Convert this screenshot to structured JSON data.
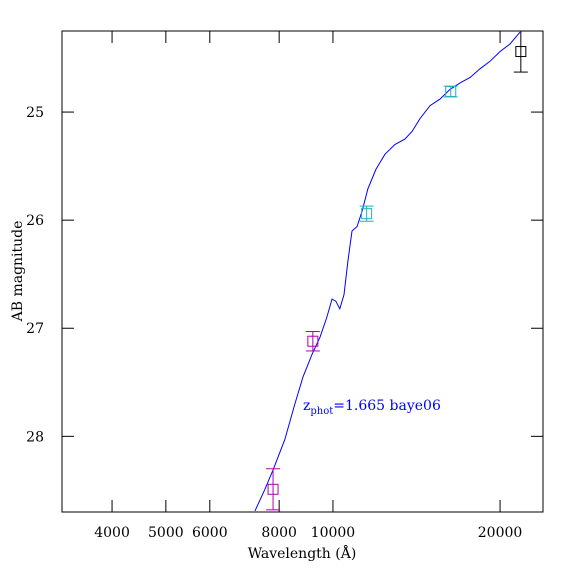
{
  "chart_data": {
    "type": "scatter",
    "xlabel": "Wavelength (Å)",
    "ylabel": "AB magnitude",
    "annotation": {
      "main": "z",
      "sub": "phot",
      "rest": "=1.665 baye06",
      "color": "#0000ff"
    },
    "xscale": "log",
    "xlim": [
      3250,
      23900
    ],
    "xticks": [
      4000,
      5000,
      6000,
      8000,
      10000,
      20000
    ],
    "ylim": [
      28.7,
      24.25
    ],
    "yticks": [
      25,
      26,
      27,
      28
    ],
    "series": [
      {
        "style": "line",
        "color": "#0000ff",
        "x": [
          7237,
          7540,
          7800,
          8190,
          8540,
          8830,
          9170,
          9480,
          9750,
          9960,
          10120,
          10290,
          10470,
          10640,
          10820,
          11050,
          11280,
          11560,
          11950,
          12410,
          12930,
          13480,
          13880,
          14350,
          14960,
          15590,
          16250,
          16940,
          17660,
          18400,
          19180,
          20000,
          20840,
          21730
        ],
        "values": [
          28.69,
          28.49,
          28.31,
          28.03,
          27.7,
          27.45,
          27.24,
          27.08,
          26.9,
          26.73,
          26.75,
          26.82,
          26.69,
          26.38,
          26.1,
          26.06,
          25.92,
          25.71,
          25.53,
          25.39,
          25.3,
          25.25,
          25.18,
          25.06,
          24.94,
          24.88,
          24.79,
          24.73,
          24.68,
          24.6,
          24.53,
          24.44,
          24.37,
          24.26
        ]
      },
      {
        "style": "points",
        "color": "#b000b0",
        "x": [
          7800,
          9200
        ],
        "values": [
          28.49,
          27.12
        ],
        "errors": [
          0.19,
          0.09
        ]
      },
      {
        "style": "points",
        "color": "#20b0c0",
        "x": [
          11500,
          16300
        ],
        "values": [
          25.94,
          24.81
        ],
        "errors": [
          0.07,
          0.05
        ]
      },
      {
        "style": "points",
        "color": "#000000",
        "x": [
          21800
        ],
        "values": [
          24.44
        ],
        "errors": [
          0.19
        ]
      }
    ]
  }
}
